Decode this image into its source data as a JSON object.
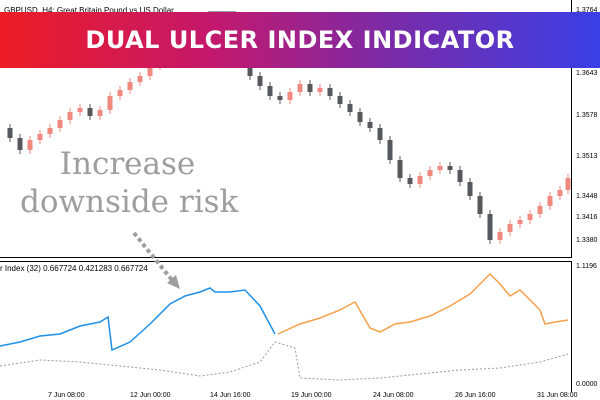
{
  "banner": {
    "title": "DUAL ULCER INDEX INDICATOR"
  },
  "main_chart": {
    "symbol_title": "GBPUSD, H4:  Great Britain Pound vs US Dollar",
    "annotation_line1": "Increase",
    "annotation_line2": "downside risk"
  },
  "price_axis": {
    "labels": [
      "1.3764",
      "1.3643",
      "1.3578",
      "1.3513",
      "1.3448",
      "1.3416",
      "1.3380"
    ],
    "values": [
      1.3764,
      1.3643,
      1.3578,
      1.3513,
      1.3448,
      1.3416,
      1.338
    ]
  },
  "indicator_pane": {
    "title": "r Index (32) 0.667724 0.421283 0.667724",
    "axis_labels": [
      "1.1196",
      "0.0000"
    ]
  },
  "time_axis": {
    "labels": [
      "7 Jun 08:00",
      "12 Jun 00:00",
      "14 Jun 16:00",
      "19 Jun 00:00",
      "24 Jun 08:00",
      "26 Jun 16:00",
      "31 Jun 08:00"
    ]
  },
  "colors": {
    "bull_candle": "#ef8a80",
    "bear_candle": "#55595e",
    "line_blue": "#1e90e8",
    "line_orange": "#f6a04a",
    "line_dotted": "#9a9a9a",
    "arrow": "#9e9e9e"
  }
}
